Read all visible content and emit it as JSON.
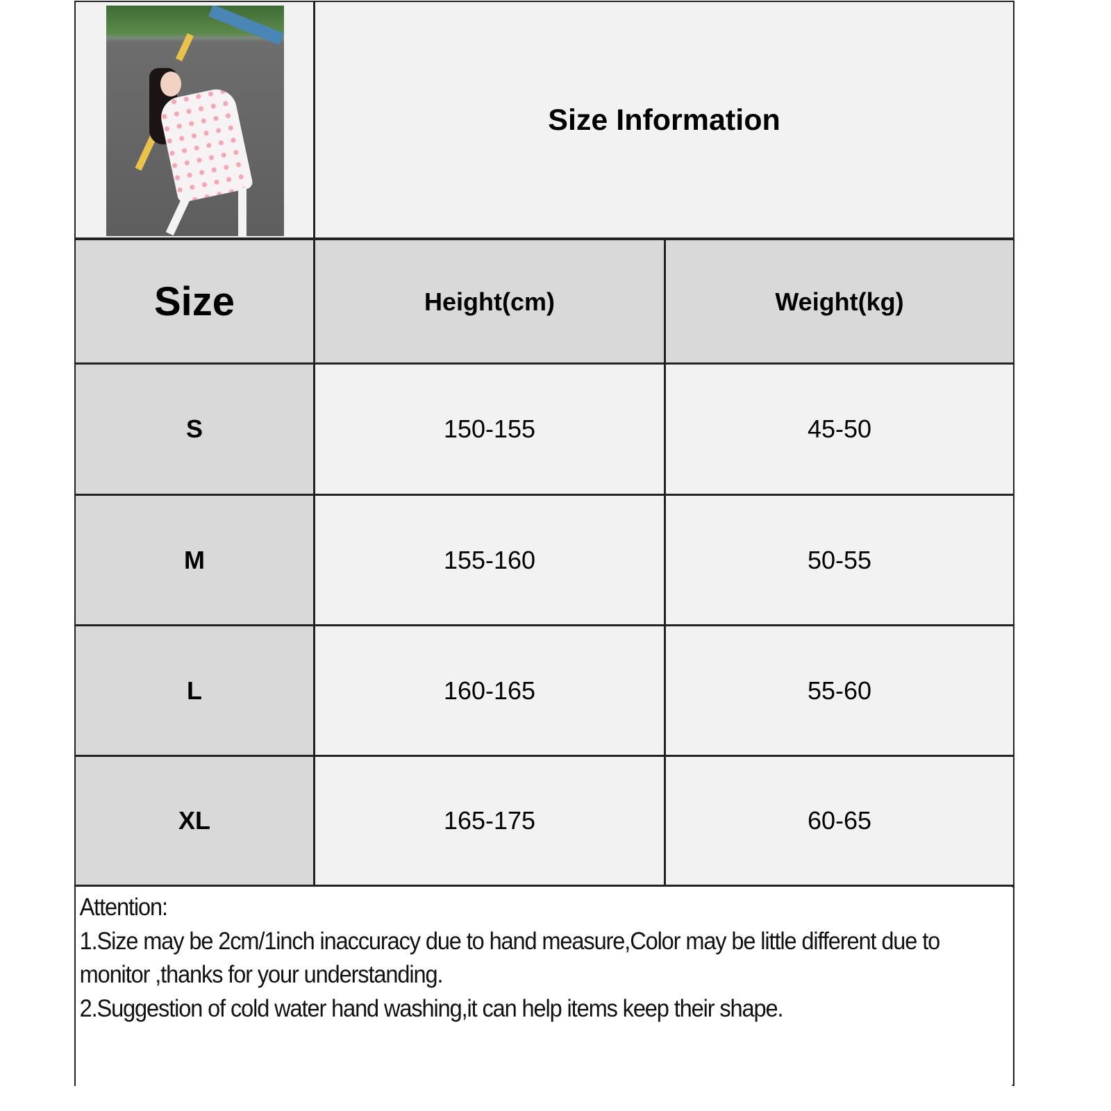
{
  "header": {
    "title": "Size Information",
    "product_image": "girl-in-floral-dress-on-road-photo"
  },
  "table": {
    "columns": [
      "Size",
      "Height(cm)",
      "Weight(kg)"
    ],
    "rows": [
      {
        "size": "S",
        "height": "150-155",
        "weight": "45-50"
      },
      {
        "size": "M",
        "height": "155-160",
        "weight": "50-55"
      },
      {
        "size": "L",
        "height": "160-165",
        "weight": "55-60"
      },
      {
        "size": "XL",
        "height": "165-175",
        "weight": "60-65"
      }
    ]
  },
  "notes": {
    "heading": "Attention:",
    "lines": [
      "1.Size may be 2cm/1inch inaccuracy due to hand measure,Color may be little different due to monitor ,thanks for your understanding.",
      "2.Suggestion of cold water hand washing,it can help items keep their shape."
    ]
  },
  "colors": {
    "header_fill": "#d9d9d9",
    "cell_fill": "#f2f2f2",
    "border": "#222222"
  }
}
